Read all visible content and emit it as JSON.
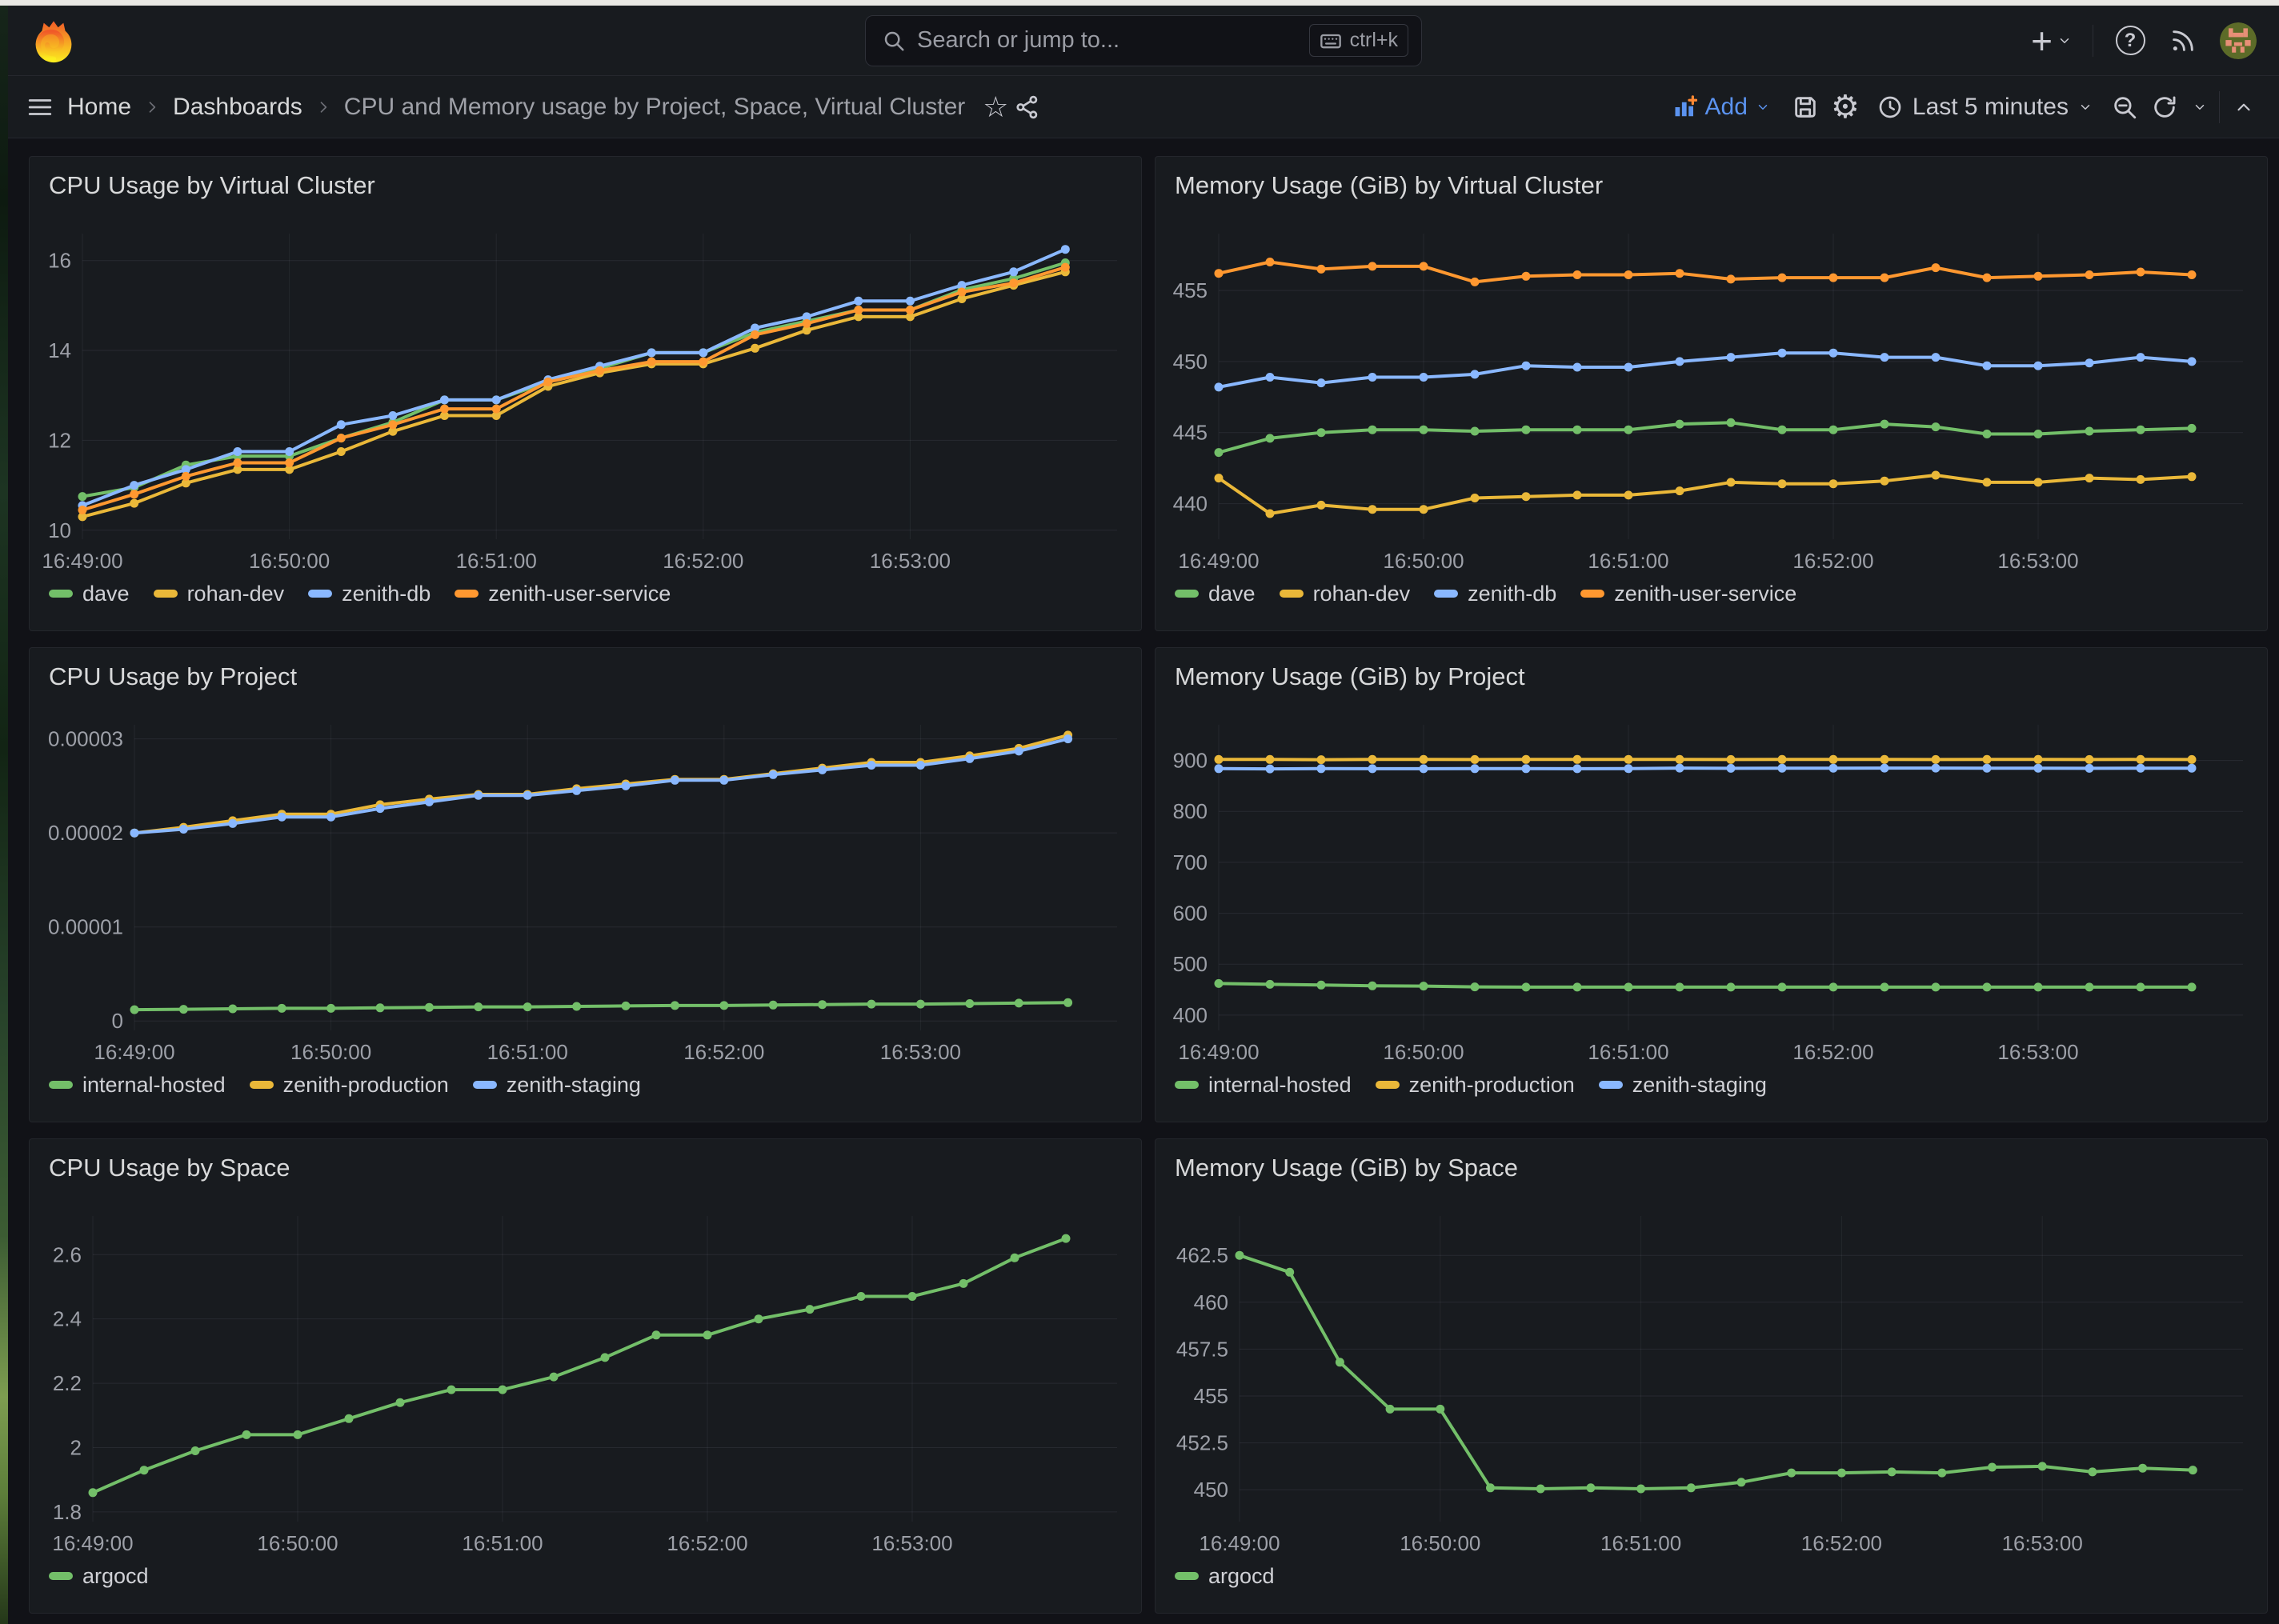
{
  "nav": {
    "search_placeholder": "Search or jump to...",
    "search_shortcut": "ctrl+k",
    "plus_glyph": "+",
    "help_glyph": "?"
  },
  "breadcrumb": {
    "items": [
      "Home",
      "Dashboards",
      "CPU and Memory usage by Project, Space, Virtual Cluster"
    ]
  },
  "toolbar": {
    "add_label": "Add",
    "time_range_label": "Last 5 minutes",
    "gear_glyph": "⚙",
    "star_glyph": "☆"
  },
  "colors": {
    "green": "#73BF69",
    "yellow": "#EAB839",
    "blue": "#8AB8FF",
    "orange": "#FF9830",
    "accent_blue": "#5b93f0",
    "panel_bg": "#181b1f",
    "canvas_bg": "#111217"
  },
  "panels": [
    {
      "title": "CPU Usage by Virtual Cluster",
      "type": "line",
      "y_min": 9.8,
      "y_max": 16.6,
      "y_ticks": [
        {
          "value": 10,
          "label": "10"
        },
        {
          "value": 12,
          "label": "12"
        },
        {
          "value": 14,
          "label": "14"
        },
        {
          "value": 16,
          "label": "16"
        }
      ],
      "x_ticks": [
        "16:49:00",
        "16:50:00",
        "16:51:00",
        "16:52:00",
        "16:53:00"
      ],
      "series": [
        {
          "name": "dave",
          "color": "#73BF69",
          "values": [
            10.75,
            10.95,
            11.45,
            11.65,
            11.65,
            12.05,
            12.4,
            12.9,
            12.9,
            13.3,
            13.6,
            13.95,
            13.95,
            14.4,
            14.65,
            14.9,
            14.9,
            15.35,
            15.6,
            15.95
          ]
        },
        {
          "name": "rohan-dev",
          "color": "#EAB839",
          "values": [
            10.3,
            10.6,
            11.05,
            11.35,
            11.35,
            11.75,
            12.2,
            12.55,
            12.55,
            13.2,
            13.5,
            13.7,
            13.7,
            14.05,
            14.45,
            14.75,
            14.75,
            15.15,
            15.45,
            15.75
          ]
        },
        {
          "name": "zenith-db",
          "color": "#8AB8FF",
          "values": [
            10.55,
            11.0,
            11.35,
            11.75,
            11.75,
            12.35,
            12.55,
            12.9,
            12.9,
            13.35,
            13.65,
            13.95,
            13.95,
            14.5,
            14.75,
            15.1,
            15.1,
            15.45,
            15.75,
            16.25
          ]
        },
        {
          "name": "zenith-user-service",
          "color": "#FF9830",
          "values": [
            10.45,
            10.8,
            11.2,
            11.5,
            11.5,
            12.05,
            12.35,
            12.7,
            12.7,
            13.3,
            13.55,
            13.75,
            13.75,
            14.35,
            14.6,
            14.9,
            14.9,
            15.3,
            15.5,
            15.85
          ]
        }
      ]
    },
    {
      "title": "Memory Usage (GiB) by Virtual Cluster",
      "type": "line",
      "y_min": 437.5,
      "y_max": 459,
      "y_ticks": [
        {
          "value": 440,
          "label": "440"
        },
        {
          "value": 445,
          "label": "445"
        },
        {
          "value": 450,
          "label": "450"
        },
        {
          "value": 455,
          "label": "455"
        }
      ],
      "x_ticks": [
        "16:49:00",
        "16:50:00",
        "16:51:00",
        "16:52:00",
        "16:53:00"
      ],
      "series": [
        {
          "name": "dave",
          "color": "#73BF69",
          "values": [
            443.6,
            444.6,
            445.0,
            445.2,
            445.2,
            445.1,
            445.2,
            445.2,
            445.2,
            445.6,
            445.7,
            445.2,
            445.2,
            445.6,
            445.4,
            444.9,
            444.9,
            445.1,
            445.2,
            445.3
          ]
        },
        {
          "name": "rohan-dev",
          "color": "#EAB839",
          "values": [
            441.8,
            439.3,
            439.9,
            439.6,
            439.6,
            440.4,
            440.5,
            440.6,
            440.6,
            440.9,
            441.5,
            441.4,
            441.4,
            441.6,
            442.0,
            441.5,
            441.5,
            441.8,
            441.7,
            441.9
          ]
        },
        {
          "name": "zenith-db",
          "color": "#8AB8FF",
          "values": [
            448.2,
            448.9,
            448.5,
            448.9,
            448.9,
            449.1,
            449.7,
            449.6,
            449.6,
            450.0,
            450.3,
            450.6,
            450.6,
            450.3,
            450.3,
            449.7,
            449.7,
            449.9,
            450.3,
            450.0
          ]
        },
        {
          "name": "zenith-user-service",
          "color": "#FF9830",
          "values": [
            456.2,
            457.0,
            456.5,
            456.7,
            456.7,
            455.6,
            456.0,
            456.1,
            456.1,
            456.2,
            455.8,
            455.9,
            455.9,
            455.9,
            456.6,
            455.9,
            456.0,
            456.1,
            456.3,
            456.1
          ]
        }
      ]
    },
    {
      "title": "CPU Usage by Project",
      "type": "line",
      "y_min": -1e-06,
      "y_max": 3.15e-05,
      "y_ticks": [
        {
          "value": 0,
          "label": "0"
        },
        {
          "value": 1e-05,
          "label": "0.00001"
        },
        {
          "value": 2e-05,
          "label": "0.00002"
        },
        {
          "value": 3e-05,
          "label": "0.00003"
        }
      ],
      "x_ticks": [
        "16:49:00",
        "16:50:00",
        "16:51:00",
        "16:52:00",
        "16:53:00"
      ],
      "series": [
        {
          "name": "internal-hosted",
          "color": "#73BF69",
          "values": [
            1.2e-06,
            1.25e-06,
            1.3e-06,
            1.35e-06,
            1.35e-06,
            1.4e-06,
            1.45e-06,
            1.5e-06,
            1.5e-06,
            1.55e-06,
            1.6e-06,
            1.65e-06,
            1.65e-06,
            1.7e-06,
            1.75e-06,
            1.8e-06,
            1.8e-06,
            1.85e-06,
            1.9e-06,
            1.95e-06
          ]
        },
        {
          "name": "zenith-production",
          "color": "#EAB839",
          "values": [
            2e-05,
            2.06e-05,
            2.13e-05,
            2.2e-05,
            2.2e-05,
            2.3e-05,
            2.36e-05,
            2.41e-05,
            2.41e-05,
            2.47e-05,
            2.52e-05,
            2.57e-05,
            2.57e-05,
            2.63e-05,
            2.69e-05,
            2.75e-05,
            2.75e-05,
            2.82e-05,
            2.9e-05,
            3.04e-05
          ]
        },
        {
          "name": "zenith-staging",
          "color": "#8AB8FF",
          "values": [
            2e-05,
            2.04e-05,
            2.1e-05,
            2.17e-05,
            2.17e-05,
            2.26e-05,
            2.33e-05,
            2.4e-05,
            2.4e-05,
            2.45e-05,
            2.5e-05,
            2.56e-05,
            2.56e-05,
            2.62e-05,
            2.67e-05,
            2.72e-05,
            2.72e-05,
            2.79e-05,
            2.87e-05,
            3e-05
          ]
        }
      ]
    },
    {
      "title": "Memory Usage (GiB) by Project",
      "type": "line",
      "y_min": 370,
      "y_max": 970,
      "y_ticks": [
        {
          "value": 400,
          "label": "400"
        },
        {
          "value": 500,
          "label": "500"
        },
        {
          "value": 600,
          "label": "600"
        },
        {
          "value": 700,
          "label": "700"
        },
        {
          "value": 800,
          "label": "800"
        },
        {
          "value": 900,
          "label": "900"
        }
      ],
      "x_ticks": [
        "16:49:00",
        "16:50:00",
        "16:51:00",
        "16:52:00",
        "16:53:00"
      ],
      "series": [
        {
          "name": "internal-hosted",
          "color": "#73BF69",
          "values": [
            462,
            460.5,
            459,
            457.5,
            457,
            455.5,
            455,
            455,
            455,
            455,
            455,
            455,
            455,
            455,
            455,
            455,
            455,
            455,
            455,
            455
          ]
        },
        {
          "name": "zenith-production",
          "color": "#EAB839",
          "values": [
            902,
            902,
            901.5,
            902,
            902,
            901.8,
            902,
            902,
            902,
            902,
            901.8,
            902,
            902,
            902,
            901.8,
            902,
            902,
            901.8,
            902,
            901.8
          ]
        },
        {
          "name": "zenith-staging",
          "color": "#8AB8FF",
          "values": [
            884,
            883.5,
            884,
            883.8,
            883.8,
            884,
            884,
            883.8,
            884,
            885,
            884.5,
            884.8,
            884.8,
            885,
            885,
            884.8,
            884.8,
            884.5,
            884.8,
            884.8
          ]
        }
      ]
    },
    {
      "title": "CPU Usage by Space",
      "type": "line",
      "y_min": 1.77,
      "y_max": 2.72,
      "y_ticks": [
        {
          "value": 1.8,
          "label": "1.8"
        },
        {
          "value": 2,
          "label": "2"
        },
        {
          "value": 2.2,
          "label": "2.2"
        },
        {
          "value": 2.4,
          "label": "2.4"
        },
        {
          "value": 2.6,
          "label": "2.6"
        }
      ],
      "x_ticks": [
        "16:49:00",
        "16:50:00",
        "16:51:00",
        "16:52:00",
        "16:53:00"
      ],
      "series": [
        {
          "name": "argocd",
          "color": "#73BF69",
          "values": [
            1.86,
            1.93,
            1.99,
            2.04,
            2.04,
            2.09,
            2.14,
            2.18,
            2.18,
            2.22,
            2.28,
            2.35,
            2.35,
            2.4,
            2.43,
            2.47,
            2.47,
            2.51,
            2.59,
            2.65
          ]
        }
      ]
    },
    {
      "title": "Memory Usage (GiB) by Space",
      "type": "line",
      "y_min": 448.3,
      "y_max": 464.6,
      "y_ticks": [
        {
          "value": 450,
          "label": "450"
        },
        {
          "value": 452.5,
          "label": "452.5"
        },
        {
          "value": 455,
          "label": "455"
        },
        {
          "value": 457.5,
          "label": "457.5"
        },
        {
          "value": 460,
          "label": "460"
        },
        {
          "value": 462.5,
          "label": "462.5"
        }
      ],
      "x_ticks": [
        "16:49:00",
        "16:50:00",
        "16:51:00",
        "16:52:00",
        "16:53:00"
      ],
      "series": [
        {
          "name": "argocd",
          "color": "#73BF69",
          "values": [
            462.5,
            461.6,
            456.8,
            454.3,
            454.3,
            450.1,
            450.05,
            450.1,
            450.05,
            450.1,
            450.4,
            450.9,
            450.9,
            450.95,
            450.9,
            451.2,
            451.25,
            450.95,
            451.15,
            451.05
          ]
        }
      ]
    }
  ]
}
